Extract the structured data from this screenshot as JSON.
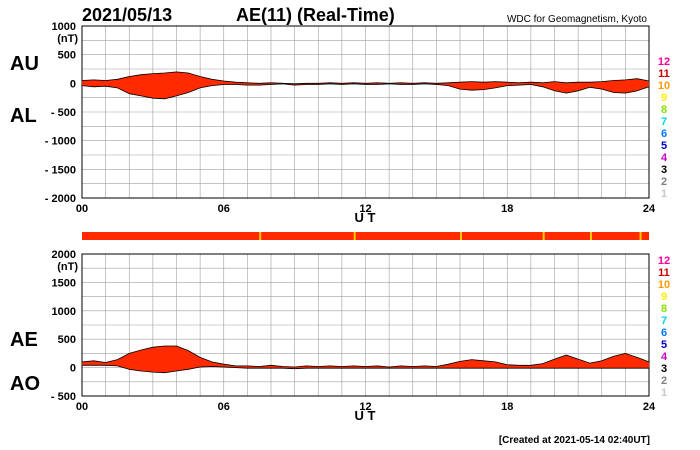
{
  "header": {
    "date": "2021/05/13",
    "title": "AE(11) (Real-Time)",
    "source": "WDC for Geomagnetism, Kyoto"
  },
  "footer": {
    "created": "[Created at 2021-05-14 02:40UT]"
  },
  "legend": {
    "labels": [
      "12",
      "11",
      "10",
      "9",
      "8",
      "7",
      "6",
      "5",
      "4",
      "3",
      "2",
      "1"
    ],
    "colors": [
      "#ff00a0",
      "#c80000",
      "#ff9900",
      "#ffee00",
      "#88e000",
      "#00d8d8",
      "#0078ff",
      "#0000c8",
      "#c800c8",
      "#000000",
      "#808080",
      "#c8c8c8"
    ]
  },
  "colors": {
    "fill": "#ff2a00",
    "grid": "#a0a0a0",
    "strip_base": "#ff2a00",
    "strip_mark": "#ffcc00"
  },
  "chart_data": [
    {
      "type": "area",
      "title": "AU / AL",
      "series_labels": [
        "AU",
        "AL"
      ],
      "unit_label": "(nT)",
      "xlabel": "U T",
      "xlim": [
        0,
        24
      ],
      "xticks": [
        "00",
        "06",
        "12",
        "18",
        "24"
      ],
      "ylim": [
        -2000,
        1000
      ],
      "yticks": [
        "1000",
        "500",
        "0",
        "- 500",
        "- 1000",
        "- 1500",
        "- 2000"
      ],
      "hours": [
        0,
        0.5,
        1,
        1.5,
        2,
        2.5,
        3,
        3.5,
        4,
        4.5,
        5,
        5.5,
        6,
        6.5,
        7,
        7.5,
        8,
        8.5,
        9,
        9.5,
        10,
        10.5,
        11,
        11.5,
        12,
        12.5,
        13,
        13.5,
        14,
        14.5,
        15,
        15.5,
        16,
        16.5,
        17,
        17.5,
        18,
        18.5,
        19,
        19.5,
        20,
        20.5,
        21,
        21.5,
        22,
        22.5,
        23,
        23.5,
        24
      ],
      "upper": [
        50,
        60,
        50,
        70,
        120,
        150,
        170,
        180,
        200,
        180,
        120,
        70,
        40,
        20,
        10,
        0,
        10,
        0,
        -10,
        0,
        0,
        10,
        0,
        10,
        0,
        10,
        0,
        10,
        0,
        10,
        0,
        10,
        20,
        30,
        20,
        30,
        20,
        10,
        20,
        10,
        30,
        10,
        20,
        20,
        30,
        50,
        60,
        80,
        40
      ],
      "lower": [
        -40,
        -60,
        -50,
        -80,
        -180,
        -220,
        -260,
        -270,
        -220,
        -160,
        -80,
        -40,
        -20,
        -20,
        -30,
        -30,
        -20,
        -10,
        -30,
        -20,
        -20,
        -10,
        -20,
        -10,
        -20,
        -20,
        -10,
        -20,
        -20,
        -10,
        -20,
        -40,
        -100,
        -120,
        -110,
        -80,
        -40,
        -30,
        -20,
        -60,
        -130,
        -170,
        -130,
        -70,
        -100,
        -160,
        -170,
        -130,
        -60
      ]
    },
    {
      "type": "area",
      "title": "AE / AO",
      "series_labels": [
        "AE",
        "AO"
      ],
      "unit_label": "(nT)",
      "xlabel": "U T",
      "xlim": [
        0,
        24
      ],
      "xticks": [
        "00",
        "06",
        "12",
        "18",
        "24"
      ],
      "ylim": [
        -500,
        2000
      ],
      "yticks": [
        "2000",
        "1500",
        "1000",
        "500",
        "0",
        "- 500"
      ],
      "hours": [
        0,
        0.5,
        1,
        1.5,
        2,
        2.5,
        3,
        3.5,
        4,
        4.5,
        5,
        5.5,
        6,
        6.5,
        7,
        7.5,
        8,
        8.5,
        9,
        9.5,
        10,
        10.5,
        11,
        11.5,
        12,
        12.5,
        13,
        13.5,
        14,
        14.5,
        15,
        15.5,
        16,
        16.5,
        17,
        17.5,
        18,
        18.5,
        19,
        19.5,
        20,
        20.5,
        21,
        21.5,
        22,
        22.5,
        23,
        23.5,
        24
      ],
      "upper": [
        100,
        120,
        90,
        140,
        250,
        310,
        360,
        380,
        380,
        300,
        180,
        100,
        60,
        30,
        30,
        20,
        40,
        20,
        10,
        30,
        20,
        30,
        20,
        30,
        20,
        30,
        10,
        30,
        20,
        30,
        20,
        60,
        110,
        140,
        120,
        100,
        50,
        40,
        40,
        70,
        150,
        220,
        150,
        80,
        120,
        200,
        250,
        180,
        100
      ],
      "lower": [
        40,
        40,
        40,
        30,
        -30,
        -60,
        -80,
        -90,
        -60,
        -30,
        10,
        20,
        10,
        0,
        -10,
        -10,
        -10,
        -10,
        -20,
        -10,
        -10,
        -10,
        -10,
        -10,
        -10,
        -10,
        -10,
        -10,
        -10,
        -10,
        -10,
        -10,
        -10,
        -10,
        -10,
        -10,
        -10,
        -10,
        -10,
        -10,
        -10,
        -10,
        -10,
        -10,
        -10,
        -10,
        -10,
        -10,
        -10
      ]
    }
  ]
}
